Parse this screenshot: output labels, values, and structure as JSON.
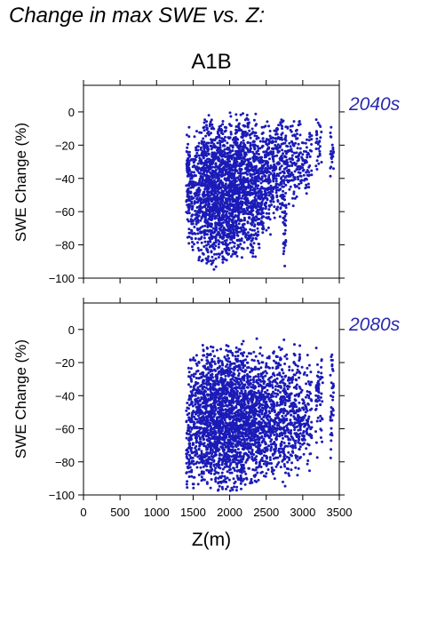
{
  "figure": {
    "title": "Change in max SWE vs. Z:",
    "scenario": "A1B",
    "xlabel": "Z(m)"
  },
  "colors": {
    "points": "#1b1bb8",
    "label": "#2a2ab0"
  },
  "chart_data": [
    {
      "type": "scatter",
      "period_label": "2040s",
      "title": "",
      "xlabel": "Z(m)",
      "ylabel": "SWE Change (%)",
      "xlim": [
        0,
        3500
      ],
      "ylim": [
        -100,
        16
      ],
      "xticks": [
        0,
        500,
        1000,
        1500,
        2000,
        2500,
        3000,
        3500
      ],
      "yticks": [
        -100,
        -80,
        -60,
        -40,
        -20,
        0
      ],
      "series": [
        {
          "point_columns": [
            {
              "x": 1430,
              "ymin": -85,
              "ymax": 2,
              "density": 0.5
            },
            {
              "x": 1460,
              "ymin": -84,
              "ymax": -15,
              "density": 0.3
            },
            {
              "x": 1500,
              "ymin": -88,
              "ymax": -12,
              "density": 0.4
            },
            {
              "x": 1550,
              "ymin": -90,
              "ymax": -10,
              "density": 0.5
            },
            {
              "x": 1600,
              "ymin": -92,
              "ymax": -5,
              "density": 0.6
            },
            {
              "x": 1650,
              "ymin": -95,
              "ymax": 3,
              "density": 0.7
            },
            {
              "x": 1700,
              "ymin": -96,
              "ymax": 4,
              "density": 0.8
            },
            {
              "x": 1750,
              "ymin": -95,
              "ymax": 2,
              "density": 0.9
            },
            {
              "x": 1800,
              "ymin": -97,
              "ymax": -8,
              "density": 0.9
            },
            {
              "x": 1850,
              "ymin": -96,
              "ymax": -5,
              "density": 0.9
            },
            {
              "x": 1900,
              "ymin": -95,
              "ymax": 2,
              "density": 0.9
            },
            {
              "x": 1950,
              "ymin": -94,
              "ymax": -5,
              "density": 0.9
            },
            {
              "x": 2000,
              "ymin": -93,
              "ymax": 3,
              "density": 0.9
            },
            {
              "x": 2050,
              "ymin": -92,
              "ymax": -6,
              "density": 0.9
            },
            {
              "x": 2100,
              "ymin": -95,
              "ymax": 4,
              "density": 0.9
            },
            {
              "x": 2150,
              "ymin": -92,
              "ymax": 3,
              "density": 0.8
            },
            {
              "x": 2200,
              "ymin": -90,
              "ymax": 4,
              "density": 0.8
            },
            {
              "x": 2250,
              "ymin": -88,
              "ymax": 0,
              "density": 0.7
            },
            {
              "x": 2300,
              "ymin": -92,
              "ymax": -2,
              "density": 0.7
            },
            {
              "x": 2350,
              "ymin": -88,
              "ymax": 2,
              "density": 0.7
            },
            {
              "x": 2400,
              "ymin": -85,
              "ymax": -5,
              "density": 0.6
            },
            {
              "x": 2450,
              "ymin": -82,
              "ymax": -3,
              "density": 0.6
            },
            {
              "x": 2500,
              "ymin": -78,
              "ymax": -4,
              "density": 0.6
            },
            {
              "x": 2550,
              "ymin": -75,
              "ymax": -2,
              "density": 0.5
            },
            {
              "x": 2600,
              "ymin": -72,
              "ymax": -5,
              "density": 0.5
            },
            {
              "x": 2650,
              "ymin": -70,
              "ymax": -2,
              "density": 0.5
            },
            {
              "x": 2700,
              "ymin": -68,
              "ymax": 0,
              "density": 0.5
            },
            {
              "x": 2750,
              "ymin": -95,
              "ymax": 0,
              "density": 0.5
            },
            {
              "x": 2800,
              "ymin": -60,
              "ymax": -5,
              "density": 0.4
            },
            {
              "x": 2850,
              "ymin": -58,
              "ymax": -2,
              "density": 0.4
            },
            {
              "x": 2900,
              "ymin": -55,
              "ymax": -5,
              "density": 0.4
            },
            {
              "x": 2950,
              "ymin": -52,
              "ymax": 0,
              "density": 0.4
            },
            {
              "x": 3000,
              "ymin": -50,
              "ymax": -10,
              "density": 0.3
            },
            {
              "x": 3050,
              "ymin": -55,
              "ymax": -5,
              "density": 0.3
            },
            {
              "x": 3100,
              "ymin": -52,
              "ymax": -8,
              "density": 0.3
            },
            {
              "x": 3200,
              "ymin": -40,
              "ymax": -2,
              "density": 0.3
            },
            {
              "x": 3240,
              "ymin": -35,
              "ymax": 0,
              "density": 0.2
            },
            {
              "x": 3400,
              "ymin": -50,
              "ymax": -5,
              "density": 0.3
            }
          ]
        }
      ]
    },
    {
      "type": "scatter",
      "period_label": "2080s",
      "title": "",
      "xlabel": "Z(m)",
      "ylabel": "SWE Change (%)",
      "xlim": [
        0,
        3500
      ],
      "ylim": [
        -100,
        16
      ],
      "xticks": [
        0,
        500,
        1000,
        1500,
        2000,
        2500,
        3000,
        3500
      ],
      "yticks": [
        -100,
        -80,
        -60,
        -40,
        -20,
        0
      ],
      "series": [
        {
          "point_columns": [
            {
              "x": 1430,
              "ymin": -100,
              "ymax": -42,
              "density": 0.5
            },
            {
              "x": 1460,
              "ymin": -98,
              "ymax": -5,
              "density": 0.3
            },
            {
              "x": 1500,
              "ymin": -100,
              "ymax": -8,
              "density": 0.4
            },
            {
              "x": 1550,
              "ymin": -100,
              "ymax": -10,
              "density": 0.5
            },
            {
              "x": 1600,
              "ymin": -100,
              "ymax": -12,
              "density": 0.6
            },
            {
              "x": 1650,
              "ymin": -100,
              "ymax": -4,
              "density": 0.7
            },
            {
              "x": 1700,
              "ymin": -100,
              "ymax": -5,
              "density": 0.8
            },
            {
              "x": 1750,
              "ymin": -100,
              "ymax": -4,
              "density": 0.9
            },
            {
              "x": 1800,
              "ymin": -100,
              "ymax": -10,
              "density": 0.9
            },
            {
              "x": 1850,
              "ymin": -100,
              "ymax": -6,
              "density": 0.9
            },
            {
              "x": 1900,
              "ymin": -100,
              "ymax": -5,
              "density": 0.9
            },
            {
              "x": 1950,
              "ymin": -100,
              "ymax": -8,
              "density": 0.9
            },
            {
              "x": 2000,
              "ymin": -100,
              "ymax": -5,
              "density": 0.9
            },
            {
              "x": 2050,
              "ymin": -100,
              "ymax": -10,
              "density": 0.9
            },
            {
              "x": 2100,
              "ymin": -100,
              "ymax": -4,
              "density": 0.9
            },
            {
              "x": 2150,
              "ymin": -100,
              "ymax": -6,
              "density": 0.8
            },
            {
              "x": 2200,
              "ymin": -100,
              "ymax": -5,
              "density": 0.8
            },
            {
              "x": 2250,
              "ymin": -100,
              "ymax": -6,
              "density": 0.7
            },
            {
              "x": 2300,
              "ymin": -100,
              "ymax": -8,
              "density": 0.7
            },
            {
              "x": 2350,
              "ymin": -98,
              "ymax": -5,
              "density": 0.7
            },
            {
              "x": 2400,
              "ymin": -96,
              "ymax": -10,
              "density": 0.6
            },
            {
              "x": 2450,
              "ymin": -95,
              "ymax": -8,
              "density": 0.6
            },
            {
              "x": 2500,
              "ymin": -94,
              "ymax": -12,
              "density": 0.6
            },
            {
              "x": 2550,
              "ymin": -92,
              "ymax": -8,
              "density": 0.5
            },
            {
              "x": 2600,
              "ymin": -95,
              "ymax": -10,
              "density": 0.5
            },
            {
              "x": 2650,
              "ymin": -90,
              "ymax": -8,
              "density": 0.5
            },
            {
              "x": 2700,
              "ymin": -92,
              "ymax": -4,
              "density": 0.5
            },
            {
              "x": 2750,
              "ymin": -100,
              "ymax": -5,
              "density": 0.5
            },
            {
              "x": 2800,
              "ymin": -92,
              "ymax": -10,
              "density": 0.4
            },
            {
              "x": 2850,
              "ymin": -90,
              "ymax": -8,
              "density": 0.4
            },
            {
              "x": 2900,
              "ymin": -92,
              "ymax": -5,
              "density": 0.4
            },
            {
              "x": 2950,
              "ymin": -92,
              "ymax": -5,
              "density": 0.4
            },
            {
              "x": 3000,
              "ymin": -88,
              "ymax": -20,
              "density": 0.3
            },
            {
              "x": 3050,
              "ymin": -90,
              "ymax": -15,
              "density": 0.3
            },
            {
              "x": 3100,
              "ymin": -88,
              "ymax": -18,
              "density": 0.3
            },
            {
              "x": 3200,
              "ymin": -82,
              "ymax": -5,
              "density": 0.3
            },
            {
              "x": 3250,
              "ymin": -80,
              "ymax": -10,
              "density": 0.2
            },
            {
              "x": 3400,
              "ymin": -85,
              "ymax": -5,
              "density": 0.3
            }
          ]
        }
      ]
    }
  ]
}
